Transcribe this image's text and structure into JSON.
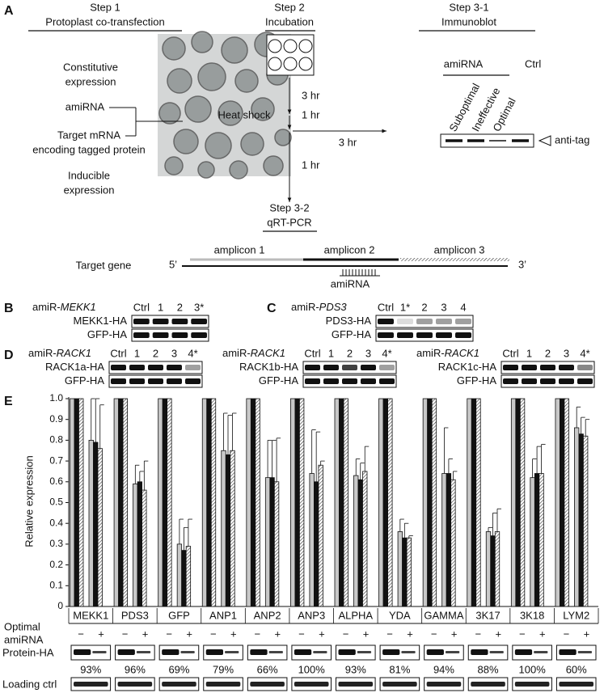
{
  "panel_a": {
    "letter": "A",
    "step1": "Step 1",
    "step1_title": "Protoplast co-transfection",
    "step2": "Step 2",
    "step2_title": "Incubation",
    "step31": "Step 3-1",
    "step31_title": "Immunoblot",
    "constitutive": [
      "Constitutive",
      "expression"
    ],
    "amirna": "amiRNA",
    "target": [
      "Target mRNA",
      "encoding tagged protein"
    ],
    "inducible": [
      "Inducible",
      "expression"
    ],
    "time1": "3 hr",
    "heat_shock": "Heat shock",
    "time2": "1 hr",
    "time3": "3 hr",
    "time4": "1 hr",
    "blot_group": "amiRNA",
    "blot_ctrl": "Ctrl",
    "lanes": [
      "Suboptimal",
      "Ineffective",
      "Optimal"
    ],
    "anti_tag": "anti-tag",
    "step32": "Step 3-2",
    "step32_title": "qRT-PCR",
    "amplicons": [
      "amplicon 1",
      "amplicon 2",
      "amplicon 3"
    ],
    "target_gene": "Target gene",
    "five": "5’",
    "three": "3’",
    "amirna_site": "amiRNA"
  },
  "blots": [
    {
      "letter": "B",
      "prefix": "amiR-",
      "gene": "MEKK1",
      "lanes": [
        "Ctrl",
        "1",
        "2",
        "3*"
      ],
      "rows": [
        "MEKK1-HA",
        "GFP-HA"
      ]
    },
    {
      "letter": "C",
      "prefix": "amiR-",
      "gene": "PDS3",
      "lanes": [
        "Ctrl",
        "1*",
        "2",
        "3",
        "4"
      ],
      "rows": [
        "PDS3-HA",
        "GFP-HA"
      ]
    },
    {
      "letter": "D",
      "prefix": "amiR-",
      "gene": "RACK1",
      "lanes": [
        "Ctrl",
        "1",
        "2",
        "3",
        "4*"
      ],
      "rows": [
        "RACK1a-HA",
        "GFP-HA"
      ]
    },
    {
      "prefix": "amiR-",
      "gene": "RACK1",
      "lanes": [
        "Ctrl",
        "1",
        "2",
        "3",
        "4*"
      ],
      "rows": [
        "RACK1b-HA",
        "GFP-HA"
      ]
    },
    {
      "prefix": "amiR-",
      "gene": "RACK1",
      "lanes": [
        "Ctrl",
        "1",
        "2",
        "3",
        "4*"
      ],
      "rows": [
        "RACK1c-HA",
        "GFP-HA"
      ]
    }
  ],
  "chart_data": {
    "type": "bar",
    "letter": "E",
    "ylabel": "Relative expression",
    "categories": [
      "MEKK1",
      "PDS3",
      "GFP",
      "ANP1",
      "ANP2",
      "ANP3",
      "ALPHA",
      "YDA",
      "GAMMA",
      "3K17",
      "3K18",
      "LYM2"
    ],
    "ylim": [
      0,
      1
    ],
    "yticks": [
      0,
      0.1,
      0.2,
      0.3,
      0.4,
      0.5,
      0.6,
      0.7,
      0.8,
      0.9,
      {
        "value": 1,
        "label": "1.0"
      }
    ],
    "series": [
      {
        "color": "#c8c8c8",
        "values": [
          1,
          1,
          1,
          1,
          1,
          1,
          1,
          1,
          1,
          1,
          1,
          1
        ]
      },
      {
        "color": "#111111",
        "values": [
          1,
          1,
          1,
          1,
          1,
          1,
          1,
          1,
          1,
          1,
          1,
          1
        ]
      },
      {
        "color": "#ffffff",
        "hatch": true,
        "values": [
          1,
          1,
          1,
          1,
          1,
          1,
          1,
          1,
          1,
          1,
          1,
          1
        ]
      },
      {
        "color": "#c8c8c8",
        "values": [
          0.8,
          0.59,
          0.3,
          0.75,
          0.62,
          0.64,
          0.63,
          0.36,
          0.64,
          0.36,
          0.62,
          0.86
        ],
        "errors": [
          0.2,
          0.09,
          0.12,
          0.18,
          0.18,
          0.21,
          0.08,
          0.06,
          0.22,
          0.02,
          0.09,
          0.1
        ]
      },
      {
        "color": "#111111",
        "values": [
          0.79,
          0.6,
          0.27,
          0.73,
          0.62,
          0.6,
          0.61,
          0.33,
          0.64,
          0.34,
          0.64,
          0.83
        ],
        "errors": [
          0.21,
          0.05,
          0.11,
          0.19,
          0.18,
          0.24,
          0.08,
          0.07,
          0.07,
          0.11,
          0.13,
          0.08
        ]
      },
      {
        "color": "#ffffff",
        "hatch": true,
        "values": [
          0.76,
          0.56,
          0.29,
          0.75,
          0.6,
          0.68,
          0.65,
          0.33,
          0.61,
          0.36,
          0.64,
          0.82
        ],
        "errors": [
          0.21,
          0.14,
          0.13,
          0.18,
          0.21,
          0.02,
          0.12,
          0.01,
          0.04,
          0.11,
          0.14,
          0.08
        ]
      }
    ]
  },
  "panel_e_rows": {
    "optimal": [
      "Optimal",
      "amiRNA"
    ],
    "signs": [
      "−",
      "+"
    ],
    "protein": "Protein-HA",
    "percents": [
      "93%",
      "96%",
      "69%",
      "79%",
      "66%",
      "100%",
      "93%",
      "81%",
      "94%",
      "88%",
      "100%",
      "60%"
    ],
    "loading": "Loading ctrl"
  }
}
